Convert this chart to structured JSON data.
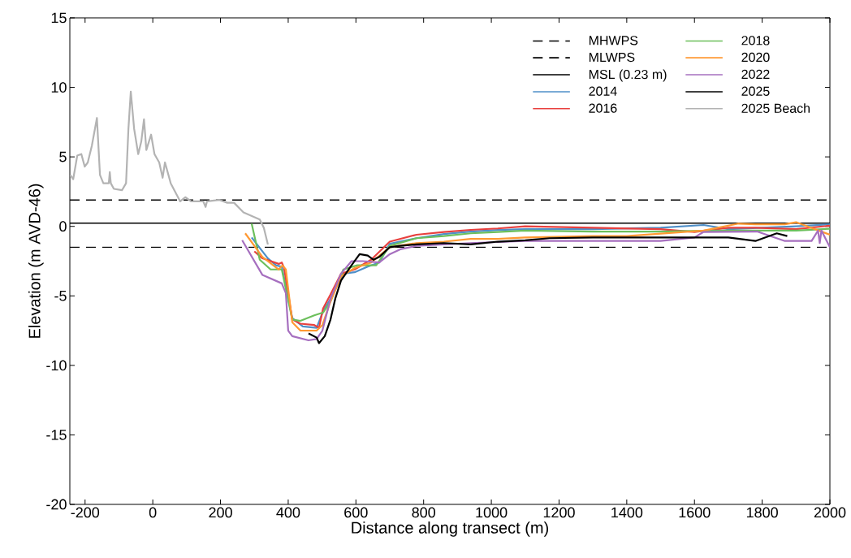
{
  "chart_data": {
    "type": "line",
    "xlabel": "Distance along transect (m)",
    "ylabel": "Elevation (m AVD-46)",
    "xlim": [
      -245,
      2000
    ],
    "ylim": [
      -20,
      15
    ],
    "xticks": [
      -200,
      0,
      200,
      400,
      600,
      800,
      1000,
      1200,
      1400,
      1600,
      1800,
      2000
    ],
    "yticks": [
      -20,
      -15,
      -10,
      -5,
      0,
      5,
      10,
      15
    ],
    "grid": false,
    "legend": "top right",
    "marker": "none",
    "line_style": "solid",
    "ref_lines": [
      {
        "axis": "y",
        "value": 1.9,
        "label": "MHWPS",
        "color": "#000000",
        "line_style": "dashed"
      },
      {
        "axis": "y",
        "value": -1.5,
        "label": "MLWPS",
        "color": "#000000",
        "line_style": "dashed"
      },
      {
        "axis": "y",
        "value": 0.23,
        "label": "MSL (0.23 m)",
        "color": "#000000",
        "line_style": "solid"
      }
    ],
    "series": [
      {
        "name": "2014",
        "color": "#4f8fc8",
        "x": [
          292,
          340,
          364,
          381,
          412,
          443,
          484,
          503,
          525,
          563,
          596,
          635,
          669,
          700,
          779,
          860,
          939,
          1019,
          1100,
          1300,
          1500,
          1627,
          1700,
          1800,
          1900,
          2000
        ],
        "values": [
          -0.8,
          -2.3,
          -2.8,
          -2.9,
          -6.6,
          -7.2,
          -7.3,
          -6.1,
          -5.2,
          -3.4,
          -3.3,
          -2.9,
          -2.6,
          -1.25,
          -0.85,
          -0.55,
          -0.37,
          -0.26,
          -0.2,
          -0.2,
          -0.1,
          0.1,
          -0.2,
          -0.1,
          0.0,
          0.15
        ]
      },
      {
        "name": "2016",
        "color": "#e8403e",
        "x": [
          300,
          324,
          372,
          381,
          388,
          412,
          436,
          477,
          491,
          503,
          525,
          556,
          596,
          645,
          700,
          779,
          860,
          939,
          1019,
          1100,
          1300,
          1500,
          1600,
          1700,
          1780,
          1900,
          2000
        ],
        "values": [
          -1.8,
          -2.3,
          -2.7,
          -2.6,
          -3.0,
          -6.7,
          -7.0,
          -7.1,
          -7.3,
          -5.9,
          -4.9,
          -3.4,
          -3.1,
          -2.4,
          -1.1,
          -0.6,
          -0.4,
          -0.25,
          -0.15,
          0.0,
          -0.1,
          -0.2,
          -0.4,
          -0.1,
          -0.1,
          -0.2,
          0.05
        ]
      },
      {
        "name": "2018",
        "color": "#6cbf5c",
        "x": [
          292,
          316,
          348,
          381,
          412,
          436,
          477,
          503,
          525,
          563,
          604,
          660,
          700,
          779,
          860,
          939,
          1019,
          1100,
          1300,
          1500,
          1650,
          1800,
          1900,
          2000
        ],
        "values": [
          0.2,
          -2.4,
          -3.1,
          -3.1,
          -6.7,
          -6.8,
          -6.4,
          -6.2,
          -5.4,
          -3.1,
          -2.8,
          -2.8,
          -1.4,
          -0.85,
          -0.7,
          -0.5,
          -0.4,
          -0.3,
          -0.37,
          -0.37,
          -0.3,
          -0.3,
          -0.3,
          -0.17
        ]
      },
      {
        "name": "2020",
        "color": "#ff9933",
        "x": [
          273,
          324,
          372,
          383,
          393,
          412,
          436,
          484,
          501,
          525,
          556,
          596,
          645,
          700,
          779,
          860,
          939,
          1019,
          1100,
          1300,
          1400,
          1627,
          1730,
          1780,
          1867,
          1900,
          2000
        ],
        "values": [
          -0.5,
          -2.2,
          -3.1,
          -2.8,
          -3.1,
          -6.9,
          -7.5,
          -7.5,
          -7.1,
          -5.4,
          -3.6,
          -3.0,
          -2.6,
          -1.5,
          -1.2,
          -1.1,
          -0.9,
          -0.9,
          -0.8,
          -0.7,
          -0.7,
          -0.3,
          0.2,
          0.15,
          0.15,
          0.3,
          -0.6
        ]
      },
      {
        "name": "2022",
        "color": "#a66fbf",
        "x": [
          264,
          324,
          381,
          393,
          400,
          412,
          460,
          484,
          501,
          525,
          556,
          587,
          620,
          669,
          700,
          731,
          779,
          939,
          1100,
          1300,
          1500,
          1600,
          1627,
          1785,
          1867,
          1946,
          1965,
          1970,
          1975,
          2000
        ],
        "values": [
          -1.0,
          -3.5,
          -4.1,
          -4.8,
          -7.5,
          -7.9,
          -8.2,
          -8.1,
          -7.5,
          -5.2,
          -3.4,
          -2.5,
          -2.5,
          -2.6,
          -2.0,
          -1.65,
          -1.4,
          -1.2,
          -1.05,
          -1.05,
          -1.05,
          -0.8,
          -0.4,
          -0.37,
          -1.05,
          -1.05,
          -0.3,
          -1.2,
          -0.3,
          -1.5
        ]
      },
      {
        "name": "2025",
        "color": "#000000",
        "x": [
          460,
          484,
          491,
          508,
          525,
          539,
          556,
          587,
          611,
          635,
          652,
          669,
          700,
          731,
          779,
          860,
          939,
          1019,
          1100,
          1172,
          1300,
          1500,
          1700,
          1780,
          1843,
          1874
        ],
        "values": [
          -7.7,
          -8.0,
          -8.4,
          -7.9,
          -6.7,
          -5.2,
          -3.9,
          -2.8,
          -2.0,
          -2.1,
          -2.4,
          -2.2,
          -1.5,
          -1.4,
          -1.3,
          -1.2,
          -1.3,
          -1.1,
          -1.0,
          -0.85,
          -0.8,
          -0.8,
          -0.8,
          -1.05,
          -0.5,
          -0.7
        ]
      },
      {
        "name": "2025 Beach",
        "color": "#b3b3b3",
        "x": [
          -244,
          -235,
          -223,
          -211,
          -201,
          -192,
          -180,
          -165,
          -156,
          -146,
          -130,
          -127,
          -124,
          -115,
          -91,
          -79,
          -72,
          -65,
          -55,
          -43,
          -34,
          -26,
          -19,
          -5,
          5,
          19,
          29,
          36,
          53,
          81,
          96,
          113,
          149,
          156,
          160,
          197,
          220,
          240,
          268,
          316,
          328,
          340
        ],
        "values": [
          3.7,
          3.4,
          5.1,
          5.2,
          4.3,
          4.6,
          5.8,
          7.8,
          3.7,
          3.1,
          3.1,
          3.9,
          3.1,
          2.7,
          2.6,
          3.1,
          7.0,
          9.7,
          7.0,
          5.2,
          6.1,
          7.7,
          5.5,
          6.6,
          5.2,
          4.6,
          3.5,
          4.6,
          3.1,
          1.8,
          2.1,
          1.8,
          1.8,
          1.4,
          1.8,
          1.9,
          1.7,
          1.7,
          1.0,
          0.5,
          -0.1,
          -1.3
        ]
      }
    ]
  }
}
